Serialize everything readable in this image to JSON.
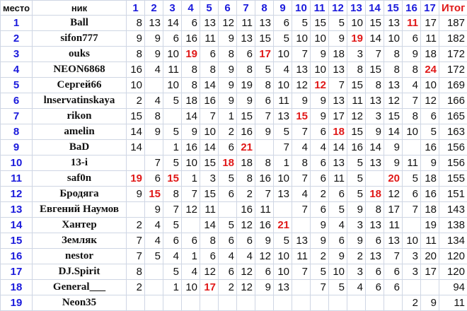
{
  "header": {
    "place": "место",
    "nick": "ник",
    "rounds": [
      "1",
      "2",
      "3",
      "4",
      "5",
      "6",
      "7",
      "8",
      "9",
      "10",
      "11",
      "12",
      "13",
      "14",
      "15",
      "16",
      "17"
    ],
    "total": "Итог"
  },
  "colors": {
    "header_blue": "#1a1adc",
    "highlight_red": "#e01818",
    "grid": "#cfd6e4"
  },
  "rows": [
    {
      "place": "1",
      "nick": "Ball",
      "scores": [
        "8",
        "13",
        "14",
        "6",
        "13",
        "12",
        "11",
        "13",
        "6",
        "5",
        "15",
        "5",
        "10",
        "15",
        "13",
        "11",
        "17"
      ],
      "highlight": [
        15
      ],
      "total": "187"
    },
    {
      "place": "2",
      "nick": "sifon777",
      "scores": [
        "9",
        "9",
        "6",
        "16",
        "11",
        "9",
        "13",
        "15",
        "5",
        "10",
        "10",
        "9",
        "19",
        "14",
        "10",
        "6",
        "11"
      ],
      "highlight": [
        12
      ],
      "total": "182"
    },
    {
      "place": "3",
      "nick": "ouks",
      "scores": [
        "8",
        "9",
        "10",
        "19",
        "6",
        "8",
        "6",
        "17",
        "10",
        "7",
        "9",
        "18",
        "3",
        "7",
        "8",
        "9",
        "18"
      ],
      "highlight": [
        3,
        7
      ],
      "total": "172"
    },
    {
      "place": "4",
      "nick": "NEON6868",
      "scores": [
        "16",
        "4",
        "11",
        "8",
        "8",
        "9",
        "8",
        "5",
        "4",
        "13",
        "10",
        "13",
        "8",
        "15",
        "8",
        "8",
        "24"
      ],
      "highlight": [
        16
      ],
      "total": "172"
    },
    {
      "place": "5",
      "nick": "Сергей66",
      "scores": [
        "10",
        "",
        "10",
        "8",
        "14",
        "9",
        "19",
        "8",
        "10",
        "12",
        "12",
        "7",
        "15",
        "8",
        "13",
        "4",
        "10"
      ],
      "highlight": [
        10
      ],
      "total": "169"
    },
    {
      "place": "6",
      "nick": "lnservatinskaya",
      "scores": [
        "2",
        "4",
        "5",
        "18",
        "16",
        "9",
        "9",
        "6",
        "11",
        "9",
        "9",
        "13",
        "11",
        "13",
        "12",
        "7",
        "12"
      ],
      "highlight": [],
      "total": "166"
    },
    {
      "place": "7",
      "nick": "rikon",
      "scores": [
        "15",
        "8",
        "",
        "14",
        "7",
        "1",
        "15",
        "7",
        "13",
        "15",
        "9",
        "17",
        "12",
        "3",
        "15",
        "8",
        "6"
      ],
      "highlight": [
        9
      ],
      "total": "165"
    },
    {
      "place": "8",
      "nick": "amelin",
      "scores": [
        "14",
        "9",
        "5",
        "9",
        "10",
        "2",
        "16",
        "9",
        "5",
        "7",
        "6",
        "18",
        "15",
        "9",
        "14",
        "10",
        "5"
      ],
      "highlight": [
        11
      ],
      "total": "163"
    },
    {
      "place": "9",
      "nick": "BaD",
      "scores": [
        "14",
        "",
        "1",
        "16",
        "14",
        "6",
        "21",
        "",
        "7",
        "4",
        "4",
        "14",
        "16",
        "14",
        "9",
        "",
        "16"
      ],
      "highlight": [
        6
      ],
      "total": "156"
    },
    {
      "place": "10",
      "nick": "13-i",
      "scores": [
        "",
        "7",
        "5",
        "10",
        "15",
        "18",
        "18",
        "8",
        "1",
        "8",
        "6",
        "13",
        "5",
        "13",
        "9",
        "11",
        "9"
      ],
      "highlight": [
        5
      ],
      "total": "156"
    },
    {
      "place": "11",
      "nick": "saf0n",
      "scores": [
        "19",
        "6",
        "15",
        "1",
        "3",
        "5",
        "8",
        "16",
        "10",
        "7",
        "6",
        "11",
        "5",
        "",
        "20",
        "5",
        "18"
      ],
      "highlight": [
        0,
        2,
        14
      ],
      "total": "155"
    },
    {
      "place": "12",
      "nick": "Бродяга",
      "scores": [
        "9",
        "15",
        "8",
        "7",
        "15",
        "6",
        "2",
        "7",
        "13",
        "4",
        "2",
        "6",
        "5",
        "18",
        "12",
        "6",
        "16"
      ],
      "highlight": [
        1,
        13
      ],
      "total": "151"
    },
    {
      "place": "13",
      "nick": "Евгений Наумов",
      "scores": [
        "",
        "9",
        "7",
        "12",
        "11",
        "",
        "16",
        "11",
        "",
        "7",
        "6",
        "5",
        "9",
        "8",
        "17",
        "7",
        "18"
      ],
      "highlight": [],
      "total": "143"
    },
    {
      "place": "14",
      "nick": "Хантер",
      "scores": [
        "2",
        "4",
        "5",
        "",
        "14",
        "5",
        "12",
        "16",
        "21",
        "",
        "9",
        "4",
        "3",
        "13",
        "11",
        "",
        "19"
      ],
      "highlight": [
        8
      ],
      "total": "138"
    },
    {
      "place": "15",
      "nick": "Земляк",
      "scores": [
        "7",
        "4",
        "6",
        "6",
        "8",
        "6",
        "6",
        "9",
        "5",
        "13",
        "9",
        "6",
        "9",
        "6",
        "13",
        "10",
        "11"
      ],
      "highlight": [],
      "total": "134"
    },
    {
      "place": "16",
      "nick": "nestor",
      "scores": [
        "7",
        "5",
        "4",
        "1",
        "6",
        "4",
        "4",
        "12",
        "10",
        "11",
        "2",
        "9",
        "2",
        "13",
        "7",
        "3",
        "20"
      ],
      "highlight": [],
      "total": "120"
    },
    {
      "place": "17",
      "nick": "DJ.Spirit",
      "scores": [
        "8",
        "",
        "5",
        "4",
        "12",
        "6",
        "12",
        "6",
        "10",
        "7",
        "5",
        "10",
        "3",
        "6",
        "6",
        "3",
        "17"
      ],
      "highlight": [],
      "total": "120"
    },
    {
      "place": "18",
      "nick": "General___",
      "scores": [
        "2",
        "",
        "1",
        "10",
        "17",
        "2",
        "12",
        "9",
        "13",
        "",
        "7",
        "5",
        "4",
        "6",
        "6",
        "",
        ""
      ],
      "highlight": [
        4
      ],
      "total": "94"
    },
    {
      "place": "19",
      "nick": "Neon35",
      "scores": [
        "",
        "",
        "",
        "",
        "",
        "",
        "",
        "",
        "",
        "",
        "",
        "",
        "",
        "",
        "",
        "2",
        "9"
      ],
      "highlight": [],
      "total": "11"
    }
  ]
}
